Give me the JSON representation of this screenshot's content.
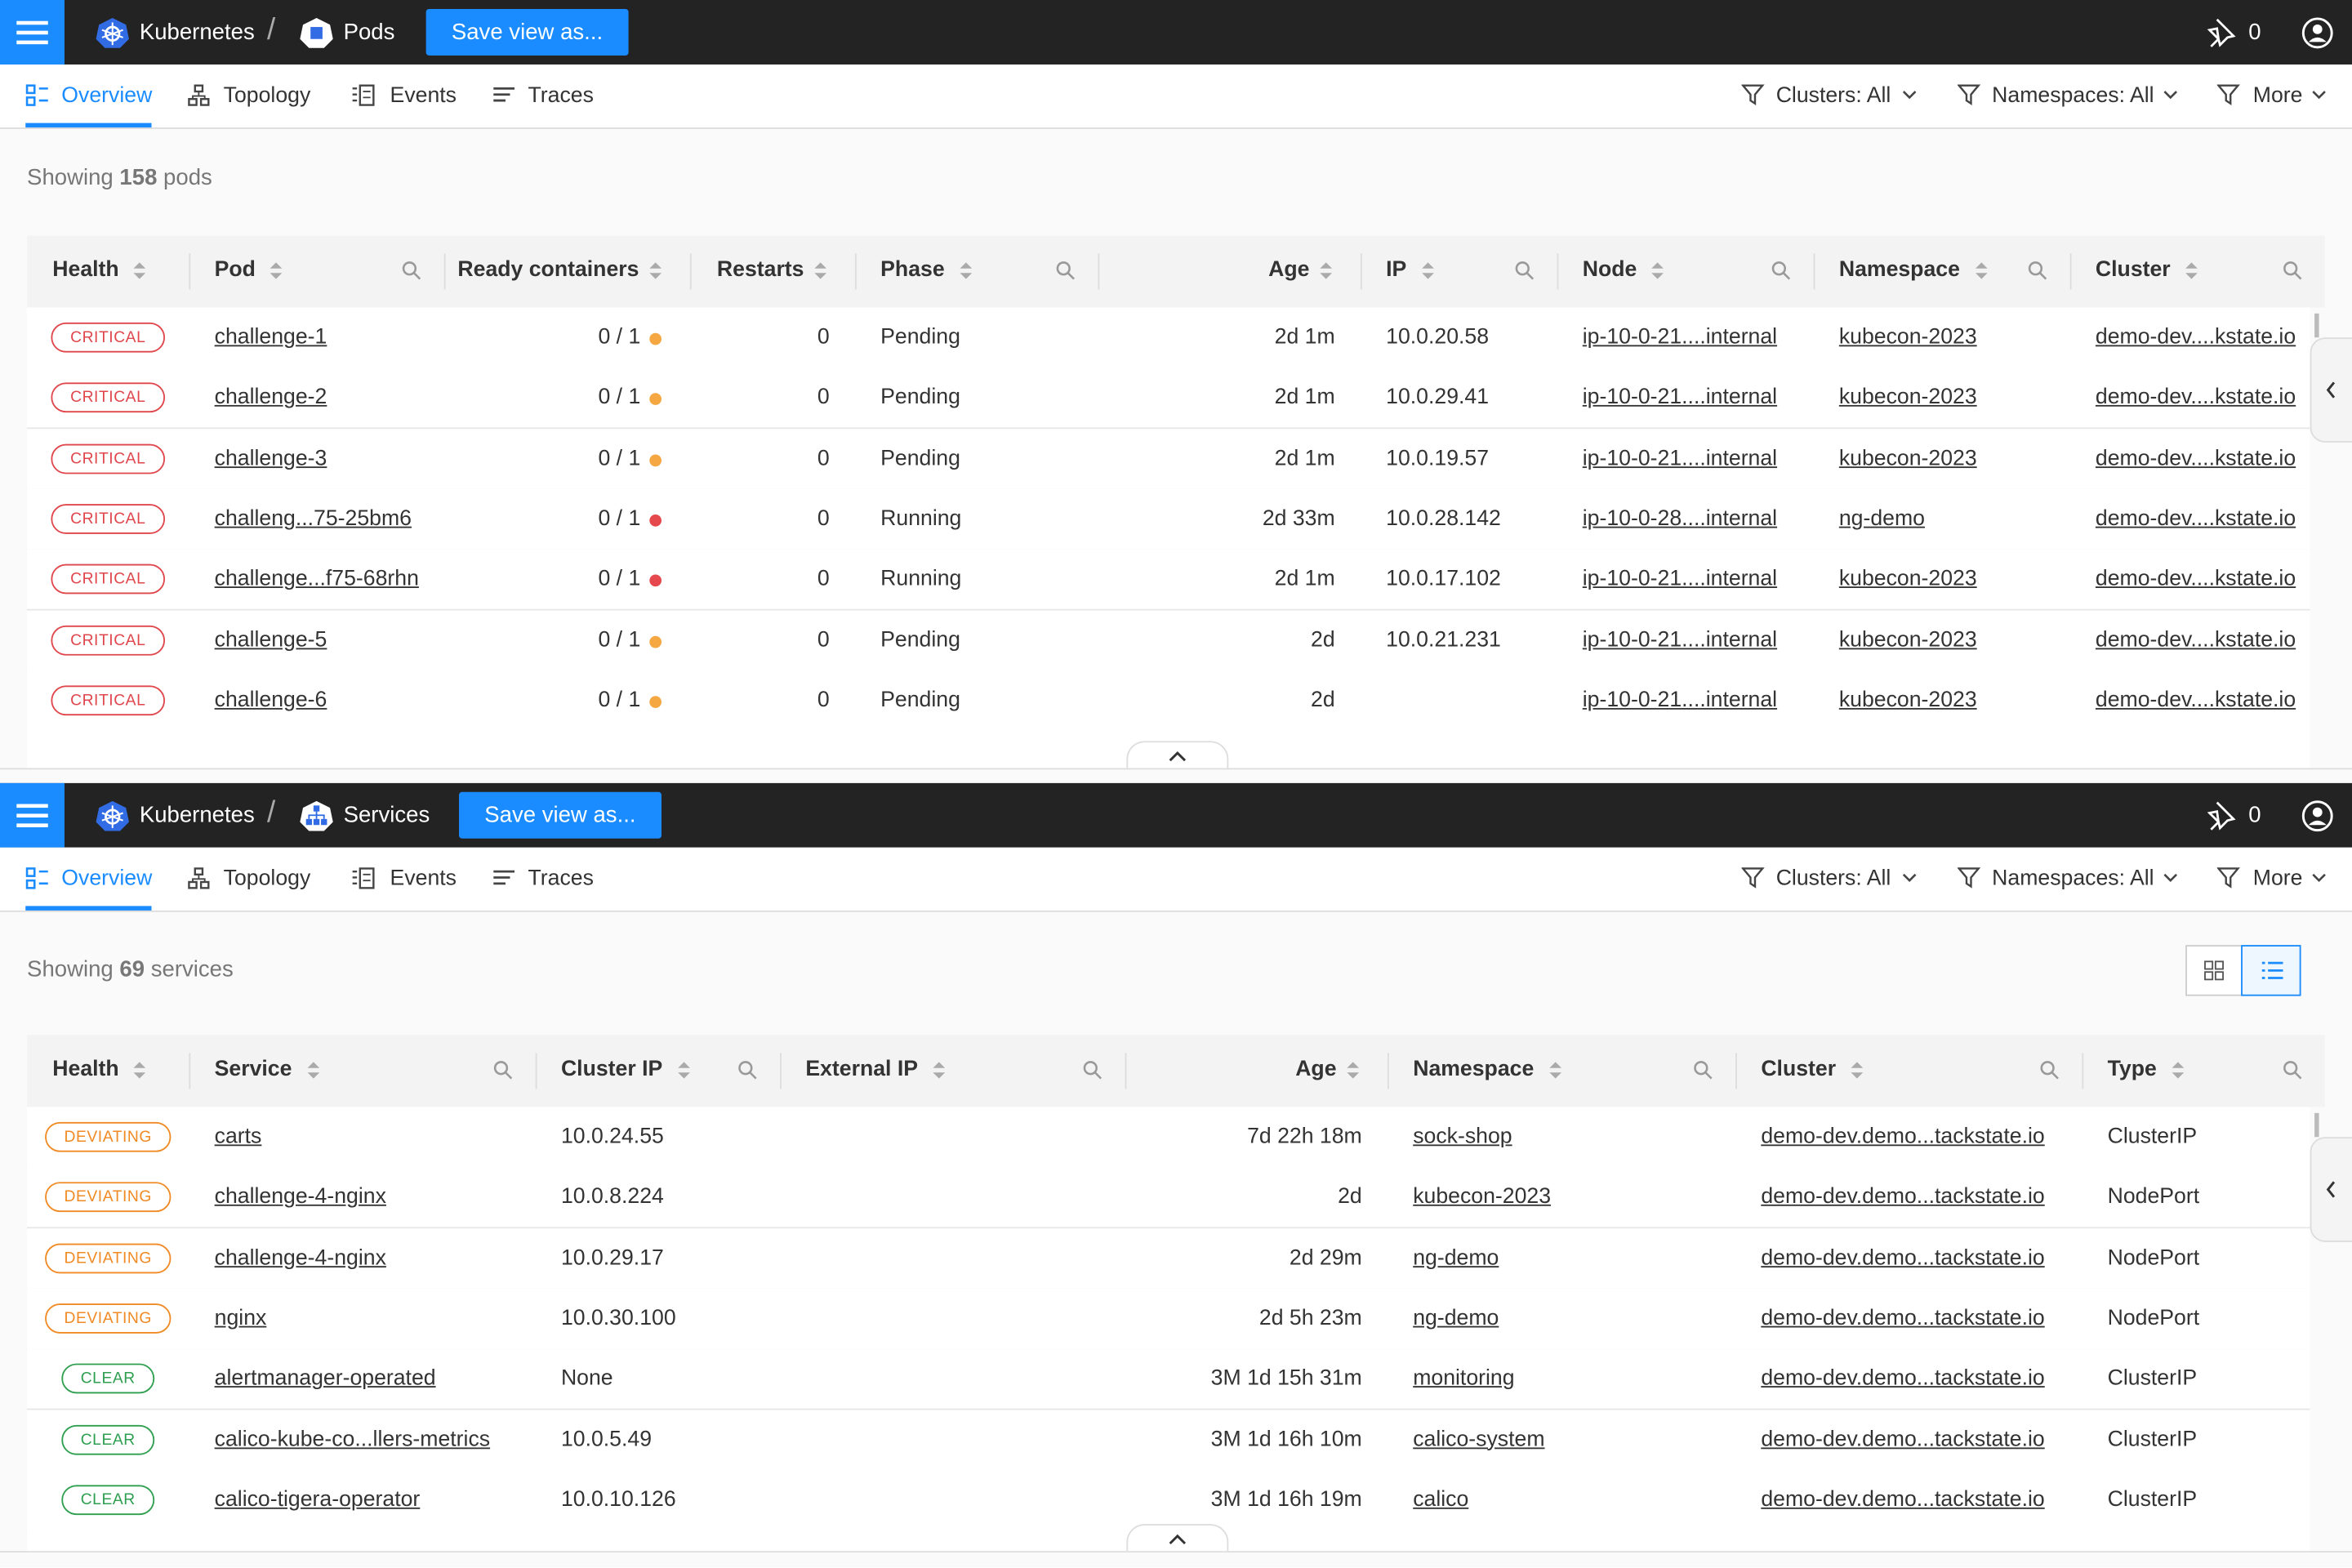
{
  "panels": [
    {
      "topbar": {
        "breadcrumb": [
          "Kubernetes",
          "Pods"
        ],
        "save_button": "Save view as...",
        "pin_count": 0
      },
      "tabs": [
        "Overview",
        "Topology",
        "Events",
        "Traces"
      ],
      "filters": [
        "Clusters: All",
        "Namespaces: All",
        "More"
      ],
      "summary": {
        "prefix": "Showing",
        "count": 158,
        "suffix": "pods"
      },
      "table": {
        "columns": [
          "Health",
          "Pod",
          "Ready containers",
          "Restarts",
          "Phase",
          "Age",
          "IP",
          "Node",
          "Namespace",
          "Cluster"
        ],
        "health_colors": [
          "#e0474c",
          "#e0474c",
          "#e0474c",
          "#e0474c",
          "#e0474c",
          "#e0474c",
          "#e0474c"
        ],
        "ready_dot_colors": [
          "#f5a742",
          "#f5a742",
          "#f5a742",
          "#e5484d",
          "#e5484d",
          "#f5a742",
          "#f5a742"
        ],
        "rows": [
          [
            "CRITICAL",
            "challenge-1",
            "0 / 1",
            0,
            "Pending",
            "2d 1m",
            "10.0.20.58",
            "ip-10-0-21....internal",
            "kubecon-2023",
            "demo-dev....kstate.io"
          ],
          [
            "CRITICAL",
            "challenge-2",
            "0 / 1",
            0,
            "Pending",
            "2d 1m",
            "10.0.29.41",
            "ip-10-0-21....internal",
            "kubecon-2023",
            "demo-dev....kstate.io"
          ],
          [
            "CRITICAL",
            "challenge-3",
            "0 / 1",
            0,
            "Pending",
            "2d 1m",
            "10.0.19.57",
            "ip-10-0-21....internal",
            "kubecon-2023",
            "demo-dev....kstate.io"
          ],
          [
            "CRITICAL",
            "challeng...75-25bm6",
            "0 / 1",
            0,
            "Running",
            "2d 33m",
            "10.0.28.142",
            "ip-10-0-28....internal",
            "ng-demo",
            "demo-dev....kstate.io"
          ],
          [
            "CRITICAL",
            "challenge...f75-68rhn",
            "0 / 1",
            0,
            "Running",
            "2d 1m",
            "10.0.17.102",
            "ip-10-0-21....internal",
            "kubecon-2023",
            "demo-dev....kstate.io"
          ],
          [
            "CRITICAL",
            "challenge-5",
            "0 / 1",
            0,
            "Pending",
            "2d",
            "10.0.21.231",
            "ip-10-0-21....internal",
            "kubecon-2023",
            "demo-dev....kstate.io"
          ],
          [
            "CRITICAL",
            "challenge-6",
            "0 / 1",
            0,
            "Pending",
            "2d",
            null,
            "ip-10-0-21....internal",
            "kubecon-2023",
            "demo-dev....kstate.io"
          ]
        ]
      }
    },
    {
      "topbar": {
        "breadcrumb": [
          "Kubernetes",
          "Services"
        ],
        "save_button": "Save view as...",
        "pin_count": 0
      },
      "tabs": [
        "Overview",
        "Topology",
        "Events",
        "Traces"
      ],
      "filters": [
        "Clusters: All",
        "Namespaces: All",
        "More"
      ],
      "summary": {
        "prefix": "Showing",
        "count": 69,
        "suffix": "services"
      },
      "table": {
        "columns": [
          "Health",
          "Service",
          "Cluster IP",
          "External IP",
          "Age",
          "Namespace",
          "Cluster",
          "Type"
        ],
        "health_colors": [
          "#f08a24",
          "#f08a24",
          "#f08a24",
          "#f08a24",
          "#2e9e4f",
          "#2e9e4f",
          "#2e9e4f"
        ],
        "rows": [
          [
            "DEVIATING",
            "carts",
            "10.0.24.55",
            null,
            "7d 22h 18m",
            "sock-shop",
            "demo-dev.demo...tackstate.io",
            "ClusterIP"
          ],
          [
            "DEVIATING",
            "challenge-4-nginx",
            "10.0.8.224",
            null,
            "2d",
            "kubecon-2023",
            "demo-dev.demo...tackstate.io",
            "NodePort"
          ],
          [
            "DEVIATING",
            "challenge-4-nginx",
            "10.0.29.17",
            null,
            "2d 29m",
            "ng-demo",
            "demo-dev.demo...tackstate.io",
            "NodePort"
          ],
          [
            "DEVIATING",
            "nginx",
            "10.0.30.100",
            null,
            "2d 5h 23m",
            "ng-demo",
            "demo-dev.demo...tackstate.io",
            "NodePort"
          ],
          [
            "CLEAR",
            "alertmanager-operated",
            "None",
            null,
            "3M 1d 15h 31m",
            "monitoring",
            "demo-dev.demo...tackstate.io",
            "ClusterIP"
          ],
          [
            "CLEAR",
            "calico-kube-co...llers-metrics",
            "10.0.5.49",
            null,
            "3M 1d 16h 10m",
            "calico-system",
            "demo-dev.demo...tackstate.io",
            "ClusterIP"
          ],
          [
            "CLEAR",
            "calico-tigera-operator",
            "10.0.10.126",
            null,
            "3M 1d 16h 19m",
            "calico",
            "demo-dev.demo...tackstate.io",
            "ClusterIP"
          ]
        ]
      }
    }
  ]
}
